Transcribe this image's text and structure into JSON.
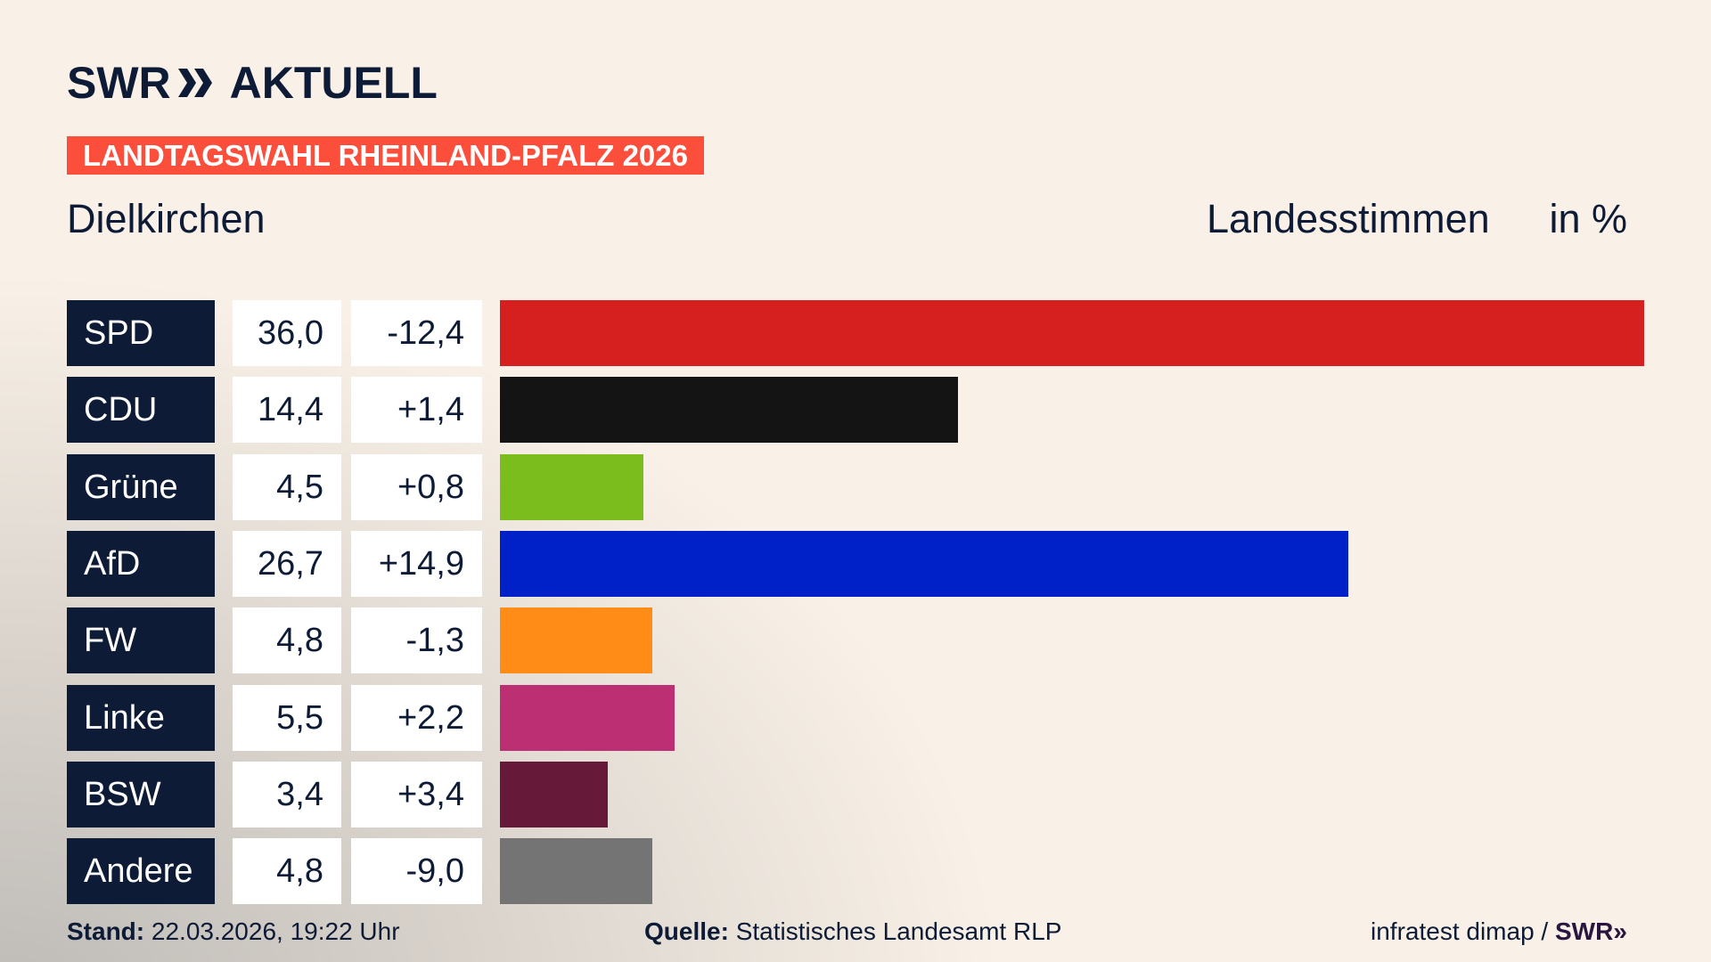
{
  "header": {
    "logo": "SWR AKTUELL",
    "logo_swr": "SWR",
    "logo_aktuell": "AKTUELL",
    "badge": "LANDTAGSWAHL RHEINLAND-PFALZ 2026",
    "place": "Dielkirchen",
    "vote_type": "Landesstimmen",
    "unit": "in %"
  },
  "chart_data": {
    "type": "bar",
    "orientation": "horizontal",
    "categories": [
      "SPD",
      "CDU",
      "Grüne",
      "AfD",
      "FW",
      "Linke",
      "BSW",
      "Andere"
    ],
    "values": [
      36.0,
      14.4,
      4.5,
      26.7,
      4.8,
      5.5,
      3.4,
      4.8
    ],
    "value_labels": [
      "36,0",
      "14,4",
      "4,5",
      "26,7",
      "4,8",
      "5,5",
      "3,4",
      "4,8"
    ],
    "change_labels": [
      "-12,4",
      "+1,4",
      "+0,8",
      "+14,9",
      "-1,3",
      "+2,2",
      "+3,4",
      "-9,0"
    ],
    "changes": [
      -12.4,
      1.4,
      0.8,
      14.9,
      -1.3,
      2.2,
      3.4,
      -9.0
    ],
    "colors": [
      "#d62020",
      "#141414",
      "#7abd1c",
      "#0021c8",
      "#fe8c17",
      "#bc2f72",
      "#661939",
      "#747474"
    ],
    "xlim": [
      0,
      36.0
    ]
  },
  "footer": {
    "stand_label": "Stand:",
    "stand_value": "22.03.2026, 19:22 Uhr",
    "source_label": "Quelle:",
    "source_value": "Statistisches Landesamt RLP",
    "credit": "infratest dimap /",
    "credit_logo": "SWR"
  }
}
